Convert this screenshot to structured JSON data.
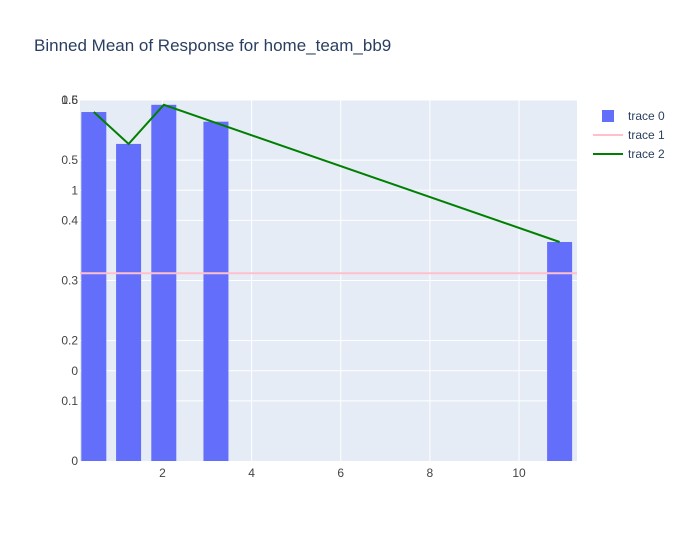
{
  "chart_data": {
    "type": "bar",
    "title": "Binned Mean of Response for home_team_bb9",
    "xlabel": "",
    "ylabel": "",
    "xlim": [
      0.15,
      11.3
    ],
    "grid": true,
    "legend_position": "top-right",
    "x_ticks": [
      "2",
      "4",
      "6",
      "8",
      "10"
    ],
    "y_ticks_left": [
      "0",
      "0.1",
      "0.2",
      "0.3",
      "0.4",
      "0.5",
      "0.6"
    ],
    "y_ticks_right": [
      "0",
      "1",
      "1.5"
    ],
    "ylim_left": [
      0,
      0.6
    ],
    "ylim_right": [
      -0.5,
      1.5
    ],
    "series": [
      {
        "name": "trace 0",
        "type": "bar",
        "color": "#636efa",
        "x": [
          0.46,
          1.24,
          2.03,
          3.2,
          10.91
        ],
        "y": [
          0.58,
          0.527,
          0.592,
          0.564,
          0.364
        ]
      },
      {
        "name": "trace 1",
        "type": "line",
        "color": "#ffc0cb",
        "x": [
          0.15,
          11.3
        ],
        "y": [
          0.312,
          0.312
        ]
      },
      {
        "name": "trace 2",
        "type": "line",
        "color": "#008000",
        "x": [
          0.46,
          1.24,
          2.03,
          10.91
        ],
        "y": [
          0.58,
          0.527,
          0.592,
          0.364
        ]
      }
    ]
  },
  "colors": {
    "plot_background": "#e5ecf6",
    "gridline": "#ffffff",
    "text": "#2a3f5f",
    "tick_text": "#444444"
  }
}
